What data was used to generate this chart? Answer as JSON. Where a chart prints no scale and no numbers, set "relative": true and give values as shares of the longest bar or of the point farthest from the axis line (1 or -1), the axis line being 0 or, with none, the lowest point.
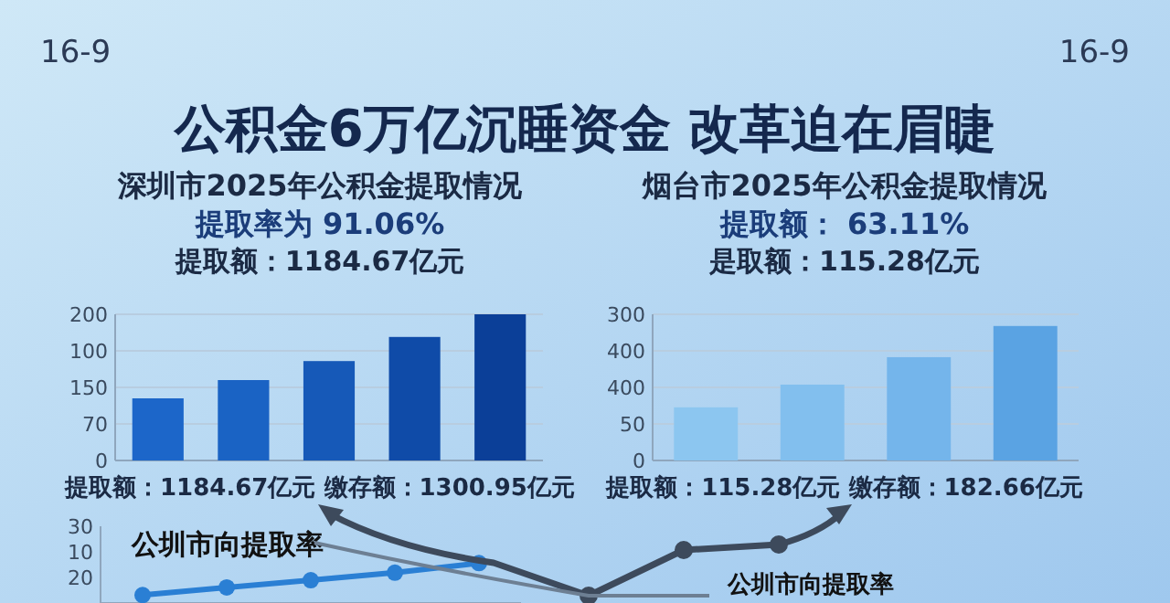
{
  "chart_data": [
    {
      "type": "other",
      "title": "公积金6万亿沉睡资金 改革迫在眉睫",
      "annotations": [
        "16-9",
        "16-9"
      ]
    },
    {
      "type": "bar",
      "relative": true,
      "title": "深圳市2025年公积金提取情况",
      "subtitle": "提取率为 91.06%",
      "annotations": [
        "提取额：1184.67亿元",
        "0",
        "70",
        "150",
        "100",
        "200"
      ],
      "xlabel": "提取额：1184.67亿元  缴存额：1300.95亿元",
      "categories": [
        null,
        null,
        null,
        null,
        null
      ],
      "values": [
        0.425,
        0.55,
        0.68,
        0.845,
        1
      ],
      "colors": [
        "#1c66c9",
        "#1a63c4",
        "#1659b8",
        "#0f4ba8",
        "#0b3f98"
      ],
      "grid": "y"
    },
    {
      "type": "bar",
      "relative": true,
      "title": "烟台市2025年公积金提取情况",
      "subtitle": "提取额：  63.11%",
      "annotations": [
        "是取额：115.28亿元",
        "0",
        "50",
        "400",
        "400",
        "300"
      ],
      "xlabel": "提取额：115.28亿元    缴存额：182.66亿元",
      "categories": [
        null,
        null,
        null,
        null
      ],
      "values": [
        0.395,
        0.564,
        0.768,
        1
      ],
      "colors": [
        "#8cc6f0",
        "#82bfee",
        "#74b5eb",
        "#5aa3e3"
      ],
      "grid": "y"
    },
    {
      "type": "line",
      "relative": true,
      "annotations": [
        "公圳市向提取率",
        "公圳市向提取率",
        "20",
        "10",
        "30"
      ],
      "categories": [
        null,
        null,
        null,
        null,
        null
      ],
      "series": [
        {
          "color": "#2a7fd4",
          "values": [
            0.2,
            0.39,
            0.57,
            0.76,
            1
          ]
        }
      ],
      "marker": "circle"
    }
  ]
}
